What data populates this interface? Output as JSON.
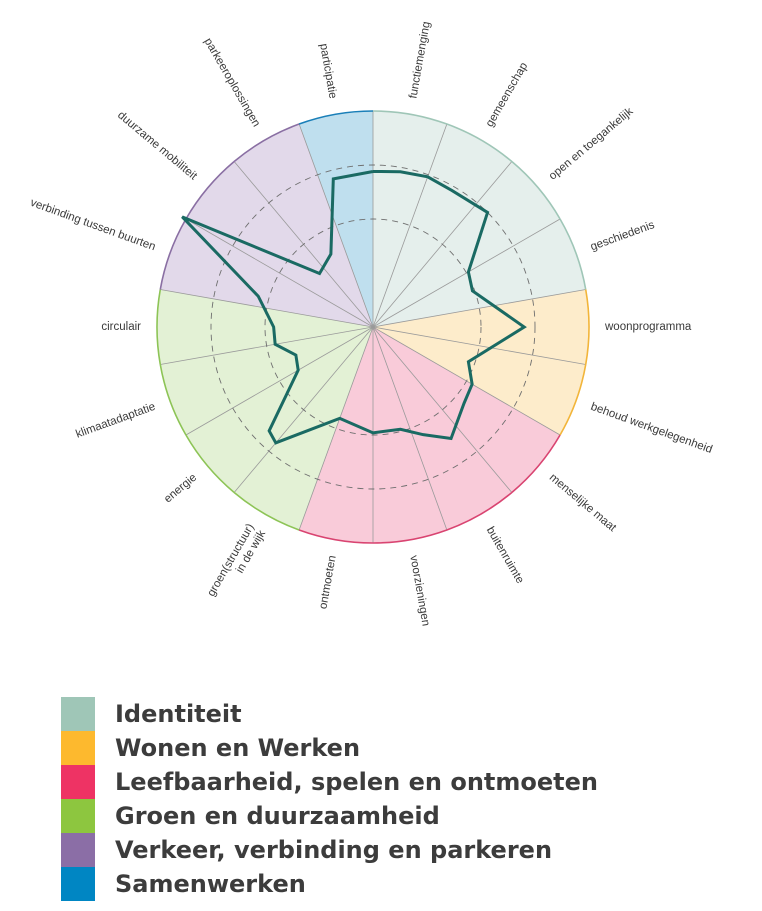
{
  "chart_data": {
    "type": "radar",
    "title": "",
    "categories": [
      "functiemenging",
      "gemeenschap",
      "open en toegankelijk",
      "geschiedenis",
      "woonprogramma",
      "behoud werkgelegenheid",
      "menselijke maat",
      "buitenruimte",
      "voorzieningen",
      "ontmoeten",
      "groen(structuur) in de wijk",
      "energie",
      "klimaatadaptatie",
      "circulair",
      "verbinding tussen buurten",
      "duurzame mobiliteit",
      "parkeeroplossingen",
      "participatie"
    ],
    "category_groups": [
      0,
      0,
      0,
      0,
      1,
      1,
      2,
      2,
      2,
      2,
      3,
      3,
      3,
      3,
      4,
      4,
      4,
      5
    ],
    "scale_max": 1,
    "gridlines": [
      0.5,
      0.75
    ],
    "series": [
      {
        "color": "#1a6a63",
        "vertices": [
          {
            "angle_deg": 0,
            "value": 0.72
          },
          {
            "angle_deg": 10,
            "value": 0.73
          },
          {
            "angle_deg": 20,
            "value": 0.74
          },
          {
            "angle_deg": 30,
            "value": 0.73
          },
          {
            "angle_deg": 45,
            "value": 0.75
          },
          {
            "angle_deg": 60,
            "value": 0.51
          },
          {
            "angle_deg": 70,
            "value": 0.49
          },
          {
            "angle_deg": 90,
            "value": 0.7
          },
          {
            "angle_deg": 110,
            "value": 0.47
          },
          {
            "angle_deg": 120,
            "value": 0.53
          },
          {
            "angle_deg": 130,
            "value": 0.55
          },
          {
            "angle_deg": 145,
            "value": 0.63
          },
          {
            "angle_deg": 155,
            "value": 0.55
          },
          {
            "angle_deg": 165,
            "value": 0.49
          },
          {
            "angle_deg": 180,
            "value": 0.49
          },
          {
            "angle_deg": 200,
            "value": 0.45
          },
          {
            "angle_deg": 220,
            "value": 0.7
          },
          {
            "angle_deg": 225,
            "value": 0.68
          },
          {
            "angle_deg": 240,
            "value": 0.4
          },
          {
            "angle_deg": 250,
            "value": 0.38
          },
          {
            "angle_deg": 260,
            "value": 0.46
          },
          {
            "angle_deg": 270,
            "value": 0.46
          },
          {
            "angle_deg": 285,
            "value": 0.55
          },
          {
            "angle_deg": 300,
            "value": 1.02
          },
          {
            "angle_deg": 315,
            "value": 0.35
          },
          {
            "angle_deg": 330,
            "value": 0.39
          },
          {
            "angle_deg": 345,
            "value": 0.71
          },
          {
            "angle_deg": 360,
            "value": 0.72
          }
        ]
      }
    ]
  },
  "legend": {
    "items": [
      {
        "label": "Identiteit",
        "color": "#9fc6b7",
        "fill": "#e5efec",
        "stroke": "#9fc6b7"
      },
      {
        "label": "Wonen en Werken",
        "color": "#fdb92e",
        "fill": "#fdeccb",
        "stroke": "#f2b53a"
      },
      {
        "label": "Leefbaarheid, spelen en ontmoeten",
        "color": "#ee3364",
        "fill": "#f9cbd9",
        "stroke": "#d94471"
      },
      {
        "label": "Groen en duurzaamheid",
        "color": "#8dc63f",
        "fill": "#e3f1d5",
        "stroke": "#8dc456"
      },
      {
        "label": "Verkeer, verbinding en parkeren",
        "color": "#8b6ea6",
        "fill": "#e2d9ea",
        "stroke": "#8a6fa3"
      },
      {
        "label": "Samenwerken",
        "color": "#0086c3",
        "fill": "#bfdfee",
        "stroke": "#1a7fb8"
      }
    ]
  }
}
